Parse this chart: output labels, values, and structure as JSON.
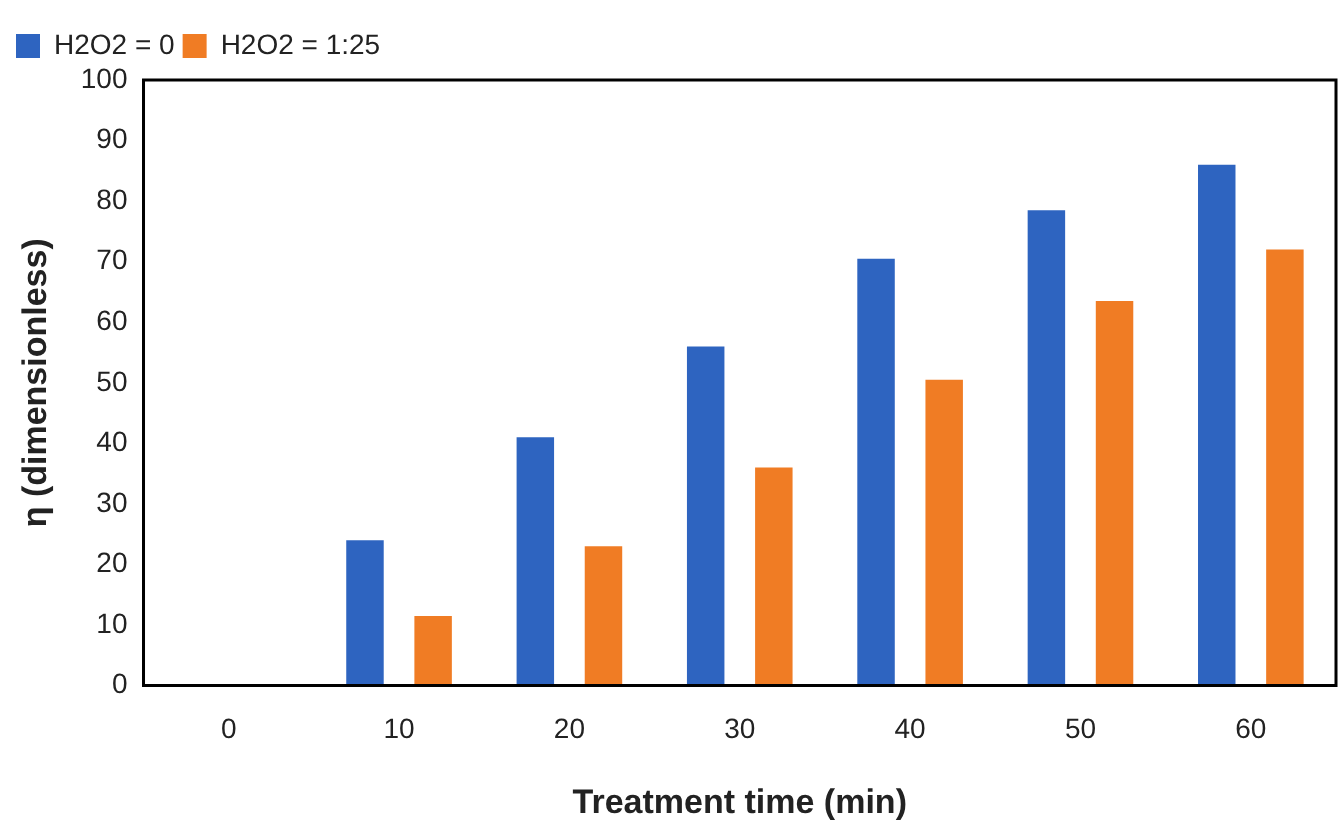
{
  "chart_data": {
    "type": "bar",
    "xlabel": "Treatment time (min)",
    "ylabel": "η (dimensionless)",
    "categories": [
      "0",
      "10",
      "20",
      "30",
      "40",
      "50",
      "60"
    ],
    "series": [
      {
        "name": "H2O2 = 0",
        "color": "#2e64c0",
        "values": [
          0,
          24,
          41,
          56,
          70.5,
          78.5,
          86
        ]
      },
      {
        "name": "H2O2 = 1:25",
        "color": "#f07c24",
        "values": [
          0,
          11.5,
          23,
          36,
          50.5,
          63.5,
          72
        ]
      }
    ],
    "ylim": [
      0,
      100
    ],
    "yticks": [
      0,
      10,
      20,
      30,
      40,
      50,
      60,
      70,
      80,
      90,
      100
    ],
    "grid": false,
    "legend": "top left"
  }
}
